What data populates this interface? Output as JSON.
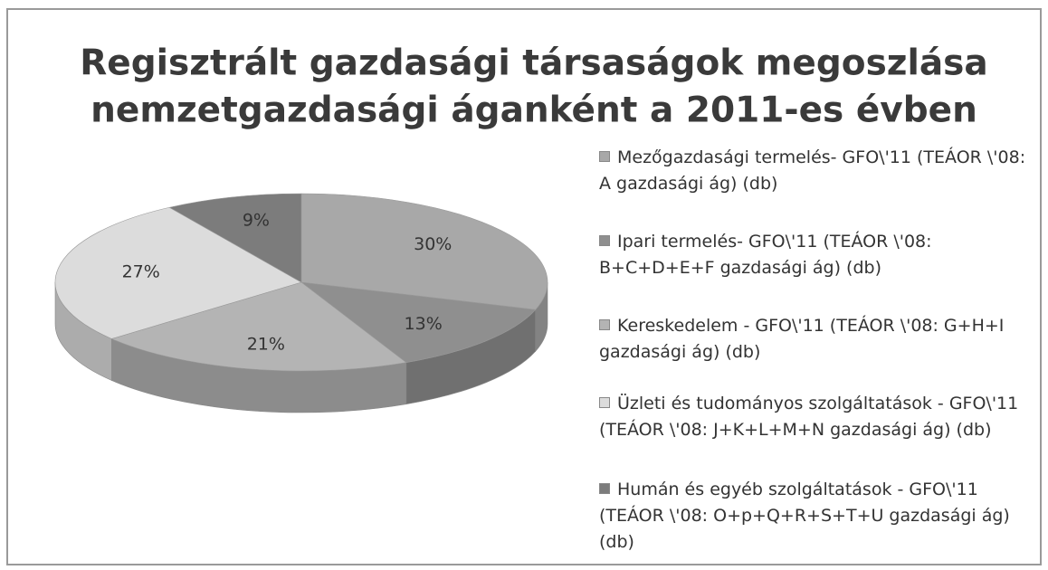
{
  "chart_data": {
    "type": "pie",
    "title": [
      "Regisztrált gazdasági társaságok megoszlása",
      "nemzetgazdasági áganként a 2011-es évben"
    ],
    "categories": [
      "Mezőgazdasági termelés- GFO\\'11 (TEÁOR \\'08: A gazdasági ág) (db)",
      "Ipari termelés- GFO\\'11 (TEÁOR \\'08: B+C+D+E+F gazdasági ág) (db)",
      "Kereskedelem - GFO\\'11 (TEÁOR \\'08: G+H+I gazdasági ág) (db)",
      "Üzleti és tudományos szolgáltatások - GFO\\'11 (TEÁOR \\'08: J+K+L+M+N gazdasági ág) (db)",
      "Humán és egyéb szolgáltatások - GFO\\'11 (TEÁOR \\'08: O+p+Q+R+S+T+U gazdasági ág) (db)"
    ],
    "values": [
      30,
      13,
      21,
      27,
      9
    ],
    "value_labels": [
      "30%",
      "13%",
      "21%",
      "27%",
      "9%"
    ],
    "colors": [
      "#a8a8a8",
      "#8f8f8f",
      "#b4b4b4",
      "#dcdcdc",
      "#7c7c7c"
    ],
    "legend": "right"
  }
}
